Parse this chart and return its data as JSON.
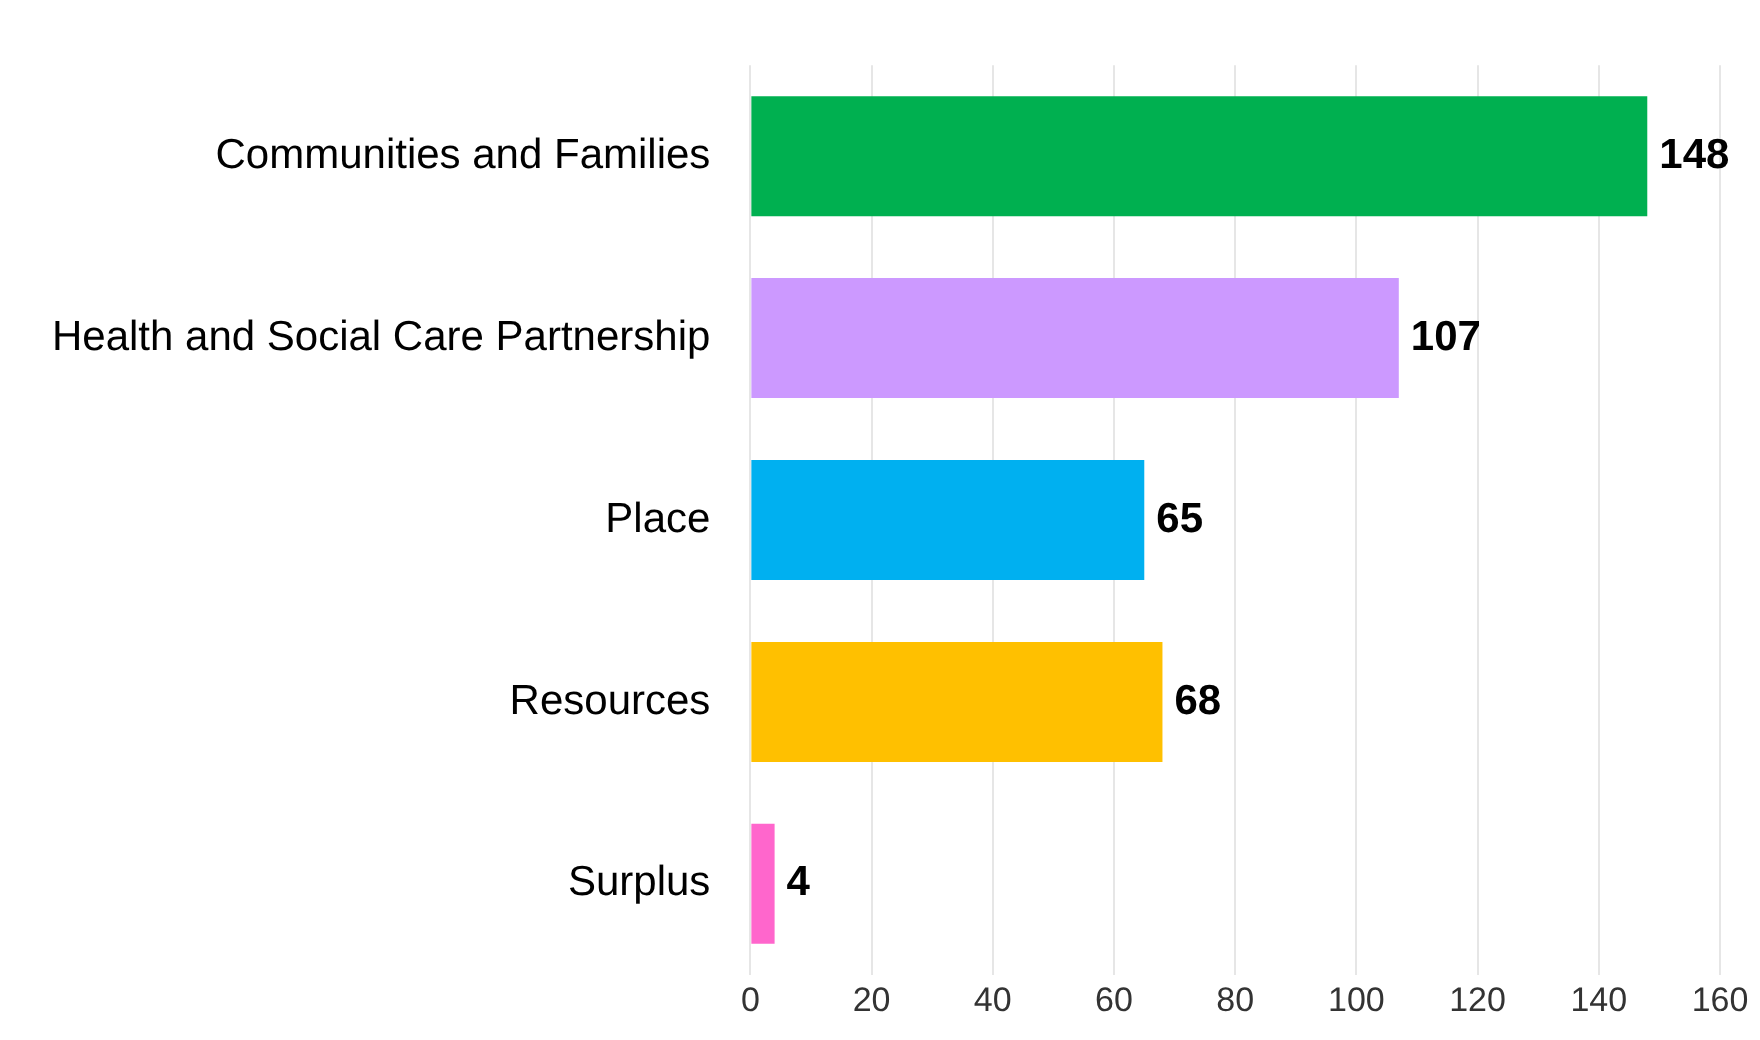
{
  "chart_data": {
    "type": "bar",
    "orientation": "horizontal",
    "categories": [
      "Communities and Families",
      "Health and Social Care Partnership",
      "Place",
      "Resources",
      "Surplus"
    ],
    "values": [
      148,
      107,
      65,
      68,
      4
    ],
    "colors": [
      "#00b050",
      "#cc99ff",
      "#00b0f0",
      "#ffc000",
      "#ff66cc"
    ],
    "xlim": [
      0,
      160
    ],
    "xticks": [
      0,
      20,
      40,
      60,
      80,
      100,
      120,
      140,
      160
    ],
    "grid": "x",
    "data_labels": true,
    "legend": false
  }
}
